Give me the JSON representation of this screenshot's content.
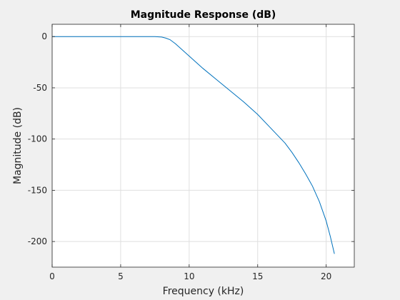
{
  "chart_data": {
    "type": "line",
    "title": "Magnitude Response (dB)",
    "xlabel": "Frequency (kHz)",
    "ylabel": "Magnitude (dB)",
    "xlim": [
      0,
      22.05
    ],
    "ylim": [
      -225,
      12
    ],
    "xticks": [
      0,
      5,
      10,
      15,
      20
    ],
    "yticks": [
      0,
      -50,
      -100,
      -150,
      -200
    ],
    "grid": true,
    "series": [
      {
        "color": "#0072bd",
        "x": [
          0,
          2,
          4,
          6,
          7.5,
          8.0,
          8.3,
          8.6,
          9.0,
          9.5,
          10.0,
          10.5,
          11.0,
          12.0,
          13.0,
          14.0,
          15.0,
          16.0,
          17.0,
          17.5,
          18.0,
          18.5,
          19.0,
          19.5,
          20.0,
          20.3,
          20.6
        ],
        "values": [
          0,
          0,
          0,
          0,
          0,
          -0.5,
          -1.5,
          -3,
          -7,
          -13,
          -19,
          -25,
          -31,
          -42,
          -53,
          -64,
          -76,
          -90,
          -104,
          -113,
          -123,
          -134,
          -146,
          -161,
          -180,
          -195,
          -212
        ]
      }
    ]
  },
  "colors": {
    "figure_background": "#f0f0f0",
    "axes_background": "#ffffff",
    "grid": "#dfdfdf",
    "axis": "#262626"
  }
}
